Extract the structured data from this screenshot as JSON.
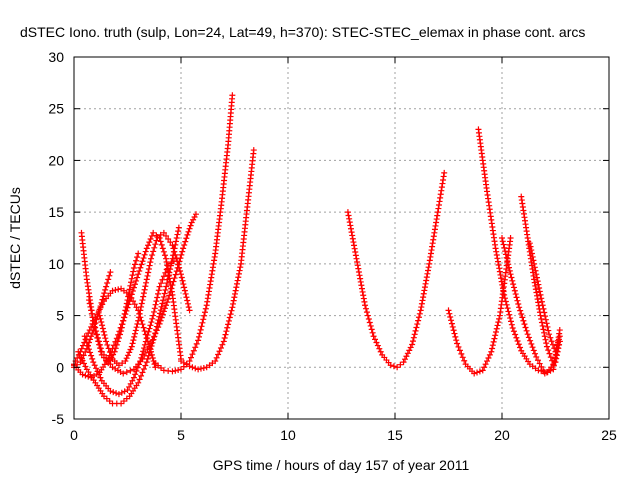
{
  "chart_data": {
    "type": "scatter",
    "title": "dSTEC Iono. truth (sulp, Lon=24, Lat=49, h=370): STEC-STEC_elemax in phase cont. arcs",
    "xlabel": "GPS time / hours of day 157 of year 2011",
    "ylabel": "dSTEC  / TECUs",
    "xlim": [
      0,
      25
    ],
    "ylim": [
      -5,
      30
    ],
    "xticks": [
      "0",
      "5",
      "10",
      "15",
      "20",
      "25"
    ],
    "yticks": [
      "-5",
      "0",
      "5",
      "10",
      "15",
      "20",
      "25",
      "30"
    ],
    "grid": true,
    "marker": "+",
    "color": "#ff0000",
    "series": [
      {
        "x": [
          0.35,
          0.6,
          0.9,
          1.3,
          1.8,
          2.3,
          2.8,
          3.2,
          3.6,
          4.0,
          4.4,
          4.8,
          5.1,
          5.3,
          5.5,
          5.7
        ],
        "y": [
          13.0,
          8.5,
          4.5,
          1.5,
          0.0,
          -0.6,
          -0.2,
          0.8,
          2.3,
          4.2,
          6.6,
          9.3,
          11.5,
          12.8,
          14.0,
          14.8
        ]
      },
      {
        "x": [
          0.0,
          0.3,
          0.6,
          1.0,
          1.4,
          1.8,
          2.2,
          2.6,
          3.0,
          3.3,
          3.6,
          3.8
        ],
        "y": [
          0.3,
          1.5,
          3.0,
          4.8,
          6.4,
          7.4,
          7.6,
          7.0,
          5.5,
          3.5,
          1.5,
          0.0
        ]
      },
      {
        "x": [
          0.0,
          0.3,
          0.6,
          0.9,
          1.2,
          1.5,
          1.7
        ],
        "y": [
          0.0,
          0.5,
          1.8,
          3.6,
          5.6,
          7.8,
          9.2
        ]
      },
      {
        "x": [
          0.0,
          0.4,
          0.8,
          1.2,
          1.6,
          2.0,
          2.3,
          2.6,
          3.0,
          3.4,
          3.7,
          4.0,
          4.3,
          4.6,
          5.0
        ],
        "y": [
          0.2,
          -0.7,
          -1.0,
          -0.5,
          0.8,
          2.8,
          4.5,
          6.4,
          9.0,
          11.5,
          13.0,
          12.5,
          10.5,
          7.0,
          0.8
        ]
      },
      {
        "x": [
          0.2,
          0.6,
          1.0,
          1.4,
          1.8,
          2.2,
          2.6,
          3.0,
          3.4,
          3.8,
          4.2,
          4.6,
          4.9
        ],
        "y": [
          1.5,
          -0.2,
          -1.5,
          -2.8,
          -3.5,
          -3.5,
          -2.8,
          -1.5,
          0.5,
          3.3,
          6.8,
          10.5,
          13.5
        ]
      },
      {
        "x": [
          0.5,
          0.9,
          1.3,
          1.7,
          2.1,
          2.5,
          2.8,
          3.1,
          3.4,
          3.7,
          4.0,
          4.4,
          4.8
        ],
        "y": [
          3.0,
          0.5,
          -1.3,
          -2.3,
          -2.6,
          -2.2,
          -1.0,
          0.6,
          2.8,
          5.0,
          7.8,
          9.8,
          10.5
        ]
      },
      {
        "x": [
          0.7,
          1.0,
          1.3,
          1.6,
          1.9,
          2.2,
          2.5,
          2.8,
          3.0
        ],
        "y": [
          6.5,
          3.5,
          1.2,
          0.4,
          1.5,
          3.5,
          6.5,
          9.6,
          11.0
        ]
      },
      {
        "x": [
          1.2,
          1.5,
          1.8,
          2.1,
          2.4,
          2.7,
          3.0,
          3.3,
          3.6,
          3.9,
          4.2,
          4.6,
          5.0,
          5.4
        ],
        "y": [
          5.0,
          2.5,
          0.8,
          0.2,
          0.6,
          2.0,
          4.5,
          7.5,
          10.5,
          12.6,
          13.0,
          11.8,
          9.0,
          5.5
        ]
      },
      {
        "x": [
          3.8,
          4.2,
          4.6,
          5.0,
          5.4,
          5.8,
          6.2,
          6.6,
          6.9,
          7.2,
          7.4
        ],
        "y": [
          0.4,
          -0.3,
          -0.4,
          -0.2,
          0.6,
          2.6,
          6.0,
          11.0,
          16.0,
          21.5,
          26.3
        ]
      },
      {
        "x": [
          5.0,
          5.4,
          5.8,
          6.2,
          6.6,
          7.0,
          7.4,
          7.8,
          8.1,
          8.4
        ],
        "y": [
          0.6,
          0.1,
          -0.2,
          0.0,
          0.6,
          2.5,
          5.8,
          10.0,
          15.5,
          21.0
        ]
      },
      {
        "x": [
          12.8,
          13.2,
          13.6,
          14.0,
          14.4,
          14.8,
          15.1,
          15.4,
          15.8,
          16.2,
          16.6,
          17.0,
          17.3
        ],
        "y": [
          15.0,
          10.5,
          6.0,
          3.0,
          1.2,
          0.2,
          0.0,
          0.5,
          2.2,
          5.5,
          10.0,
          15.0,
          18.8
        ]
      },
      {
        "x": [
          17.5,
          17.9,
          18.3,
          18.7,
          19.1,
          19.5,
          19.9,
          20.2,
          20.4
        ],
        "y": [
          5.5,
          2.3,
          0.3,
          -0.6,
          -0.3,
          1.5,
          5.0,
          9.5,
          12.5
        ]
      },
      {
        "x": [
          18.9,
          19.3,
          19.7,
          20.1,
          20.5,
          20.9,
          21.3,
          21.7,
          22.1,
          22.5,
          22.7
        ],
        "y": [
          23.0,
          17.0,
          11.5,
          7.0,
          3.8,
          1.6,
          0.3,
          -0.3,
          -0.5,
          0.5,
          2.5
        ]
      },
      {
        "x": [
          20.0,
          20.4,
          20.8,
          21.2,
          21.6,
          22.0,
          22.4,
          22.7
        ],
        "y": [
          12.5,
          9.0,
          5.8,
          3.2,
          1.0,
          -0.6,
          -0.2,
          3.6
        ]
      },
      {
        "x": [
          20.9,
          21.2,
          21.5,
          21.8,
          22.1,
          22.4,
          22.7
        ],
        "y": [
          16.5,
          12.5,
          8.5,
          5.0,
          2.0,
          0.3,
          2.5
        ]
      },
      {
        "x": [
          21.3,
          21.6,
          21.9,
          22.2,
          22.5,
          22.7
        ],
        "y": [
          12.0,
          9.0,
          6.0,
          3.2,
          1.5,
          3.0
        ]
      }
    ]
  }
}
